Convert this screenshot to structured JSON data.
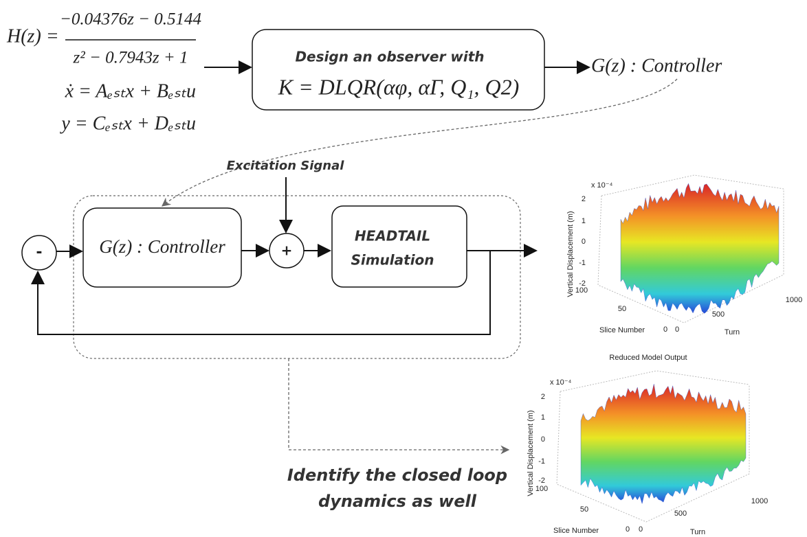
{
  "equations": {
    "h_lhs": "H(z) =",
    "h_numerator": "−0.04376z − 0.5144",
    "h_denominator": "z² − 0.7943z + 1",
    "state": "ẋ = Aₑₛₜx + Bₑₛₜu",
    "output": "y = Cₑₛₜx + Dₑₛₜu"
  },
  "observer": {
    "title": "Design an observer with",
    "formula": "K = DLQR(αφ, αΓ, Q₁, Q2)"
  },
  "controller_out": "G(z) : Controller",
  "loop": {
    "excitation": "Excitation Signal",
    "minus": "-",
    "controller": "G(z) : Controller",
    "plus": "+",
    "plant_line1": "HEADTAIL",
    "plant_line2": "Simulation"
  },
  "note": {
    "line1": "Identify the closed loop",
    "line2": "dynamics as well"
  },
  "plots": [
    {
      "exponent": "x 10⁻⁴",
      "y_label": "Vertical Displacement (m)",
      "y_ticks": [
        "2",
        "1",
        "0",
        "-1",
        "-2"
      ],
      "slice_ticks": [
        "100",
        "50",
        "0"
      ],
      "slice_label": "Slice Number",
      "turn_ticks": [
        "0",
        "500",
        "1000"
      ],
      "turn_label": "Turn"
    },
    {
      "title": "Reduced Model Output",
      "exponent": "x 10⁻⁴",
      "y_label": "Vertical Displacement (m)",
      "y_ticks": [
        "2",
        "1",
        "0",
        "-1",
        "-2"
      ],
      "slice_ticks": [
        "100",
        "50",
        "0"
      ],
      "slice_label": "Slice Number",
      "turn_ticks": [
        "0",
        "500",
        "1000"
      ],
      "turn_label": "Turn"
    }
  ]
}
